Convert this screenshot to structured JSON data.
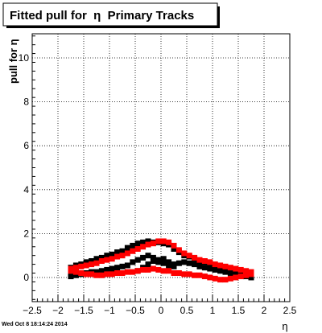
{
  "title": "Fitted pull for  η  Primary Tracks",
  "timestamp": "Wed Oct  8 18:14:24 2014",
  "colors": {
    "series1": "#000000",
    "series2": "#ff0000",
    "grid": "#000000",
    "frame": "#000000"
  },
  "chart_data": {
    "type": "scatter",
    "title": "Fitted pull for  η  Primary Tracks",
    "xlabel": "η",
    "ylabel": "pull for η",
    "xlim": [
      -2.5,
      2.5
    ],
    "ylim": [
      -1.1,
      11.1
    ],
    "grid": true,
    "xticks": [
      -2.5,
      -2,
      -1.5,
      -1,
      -0.5,
      0,
      0.5,
      1,
      1.5,
      2,
      2.5
    ],
    "xtick_labels": [
      "−2.5",
      "−2",
      "−1.5",
      "−1",
      "−0.5",
      "0",
      "0.5",
      "1",
      "1.5",
      "2",
      "2.5"
    ],
    "yticks": [
      0,
      2,
      4,
      6,
      8,
      10
    ],
    "ytick_labels": [
      "0",
      "2",
      "4",
      "6",
      "8",
      "10"
    ],
    "series": [
      {
        "color": "#000000",
        "marker": "square",
        "x": [
          -1.75,
          -1.65,
          -1.55,
          -1.45,
          -1.35,
          -1.25,
          -1.15,
          -1.05,
          -0.95,
          -0.85,
          -0.75,
          -0.65,
          -0.55,
          -0.45,
          -0.35,
          -0.25,
          -0.15,
          -0.05,
          0.05,
          0.15,
          0.25,
          0.35,
          0.45,
          0.55,
          0.65,
          0.75,
          0.85,
          0.95,
          1.05,
          1.15,
          1.25,
          1.35,
          1.45,
          1.55,
          1.65,
          1.75,
          -1.75,
          -1.65,
          -1.55,
          -1.45,
          -1.35,
          -1.25,
          -1.15,
          -1.05,
          -0.95,
          -0.85,
          -0.75,
          -0.65,
          -0.55,
          -0.45,
          -0.35,
          -0.25,
          -0.15,
          -0.05,
          0.05,
          0.15,
          0.25,
          0.35,
          0.45,
          0.55,
          0.65,
          0.75,
          0.85,
          0.95,
          1.05,
          1.15,
          1.25,
          1.35,
          1.45,
          1.55,
          1.65,
          1.75,
          -0.45,
          -0.35,
          -0.25,
          -0.15,
          -0.05,
          0.05,
          0.15,
          0.25
        ],
        "y": [
          0.45,
          0.55,
          0.6,
          0.7,
          0.75,
          0.85,
          0.9,
          1.0,
          1.05,
          1.15,
          1.2,
          1.35,
          1.45,
          1.55,
          1.6,
          1.65,
          1.6,
          1.6,
          1.55,
          1.5,
          1.3,
          1.15,
          1.0,
          0.95,
          0.85,
          0.75,
          0.7,
          0.6,
          0.5,
          0.45,
          0.4,
          0.35,
          0.3,
          0.2,
          0.15,
          0.1,
          0.05,
          0.1,
          0.15,
          0.2,
          0.25,
          0.25,
          0.3,
          0.35,
          0.4,
          0.45,
          0.5,
          0.55,
          0.7,
          0.8,
          0.9,
          1.0,
          0.9,
          0.7,
          0.65,
          0.55,
          0.6,
          0.65,
          0.7,
          0.65,
          0.6,
          0.5,
          0.45,
          0.4,
          0.35,
          0.3,
          0.25,
          0.2,
          0.15,
          0.1,
          0.05,
          0.0,
          0.3,
          0.45,
          0.6,
          0.75,
          0.8,
          0.85,
          0.7,
          0.5
        ]
      },
      {
        "color": "#ff0000",
        "marker": "square",
        "x": [
          -1.75,
          -1.65,
          -1.55,
          -1.45,
          -1.35,
          -1.25,
          -1.15,
          -1.05,
          -0.95,
          -0.85,
          -0.75,
          -0.65,
          -0.55,
          -0.45,
          -0.35,
          -0.25,
          -0.15,
          -0.05,
          0.05,
          0.15,
          0.25,
          0.35,
          0.45,
          0.55,
          0.65,
          0.75,
          0.85,
          0.95,
          1.05,
          1.15,
          1.25,
          1.35,
          1.45,
          1.55,
          1.65,
          1.75,
          -1.75,
          -1.65,
          -1.55,
          -1.45,
          -1.35,
          -1.25,
          -1.15,
          -1.05,
          -0.95,
          -0.85,
          -0.75,
          -0.65,
          -0.55,
          -0.45,
          -0.35,
          -0.25,
          -0.15,
          -0.05,
          0.05,
          0.15,
          0.25,
          0.35,
          0.45,
          0.55,
          0.65,
          0.75,
          0.85,
          0.95,
          1.05,
          1.15,
          1.25,
          1.35,
          1.45,
          1.55,
          1.65,
          1.75
        ],
        "y": [
          0.4,
          0.45,
          0.5,
          0.55,
          0.6,
          0.65,
          0.75,
          0.8,
          0.85,
          0.95,
          1.0,
          1.1,
          1.2,
          1.3,
          1.4,
          1.5,
          1.55,
          1.65,
          1.65,
          1.6,
          1.45,
          1.25,
          1.1,
          1.0,
          0.9,
          0.8,
          0.75,
          0.7,
          0.6,
          0.55,
          0.5,
          0.45,
          0.4,
          0.35,
          0.3,
          0.25,
          0.3,
          0.25,
          0.2,
          0.15,
          0.15,
          0.1,
          0.1,
          0.15,
          0.15,
          0.2,
          0.2,
          0.25,
          0.25,
          0.3,
          0.35,
          0.35,
          0.4,
          0.35,
          0.3,
          0.3,
          0.2,
          0.2,
          0.15,
          0.15,
          0.1,
          0.1,
          0.05,
          0.0,
          -0.05,
          -0.1,
          -0.1,
          -0.05,
          0.0,
          0.05,
          0.1,
          0.15
        ]
      }
    ]
  }
}
